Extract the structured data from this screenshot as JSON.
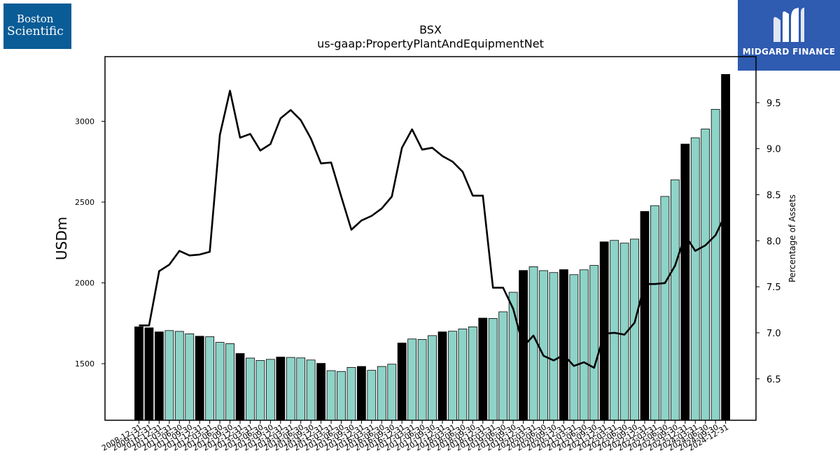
{
  "logos": {
    "company": {
      "line1": "Boston",
      "line2": "Scientific",
      "bg": "#0a5c96"
    },
    "publisher": {
      "name": "MIDGARD FINANCE",
      "bg": "#2f5bb0",
      "icon": "midgard-m-icon"
    }
  },
  "chart_data": {
    "type": "bar",
    "title": "BSX",
    "subtitle": "us-gaap:PropertyPlantAndEquipmentNet",
    "ylabel": "USDm",
    "y2label": "Percentage of Assets",
    "ylim": [
      1150,
      3400
    ],
    "y2lim": [
      6.05,
      10.0
    ],
    "yticks": [
      1500,
      2000,
      2500,
      3000
    ],
    "y2ticks": [
      "6.5",
      "7.0",
      "7.5",
      "8.0",
      "8.5",
      "9.0",
      "9.5"
    ],
    "colors": {
      "annual": "#000000",
      "quarterly": "#8ed3c7",
      "line": "#000000"
    },
    "categories": [
      "2008-12-31",
      "2009-12-31",
      "2010-12-31",
      "2011-03-31",
      "2011-06-30",
      "2011-09-30",
      "2011-12-31",
      "2012-03-31",
      "2012-06-30",
      "2012-09-30",
      "2012-12-31",
      "2013-03-31",
      "2013-06-30",
      "2013-09-30",
      "2013-12-31",
      "2014-03-31",
      "2014-06-30",
      "2014-09-30",
      "2014-12-31",
      "2015-03-31",
      "2015-06-30",
      "2015-09-30",
      "2015-12-31",
      "2016-03-31",
      "2016-06-30",
      "2016-09-30",
      "2016-12-31",
      "2017-03-31",
      "2017-06-30",
      "2017-09-30",
      "2017-12-31",
      "2018-03-31",
      "2018-06-30",
      "2018-09-30",
      "2018-12-31",
      "2019-03-31",
      "2019-06-30",
      "2019-09-30",
      "2019-12-31",
      "2020-03-31",
      "2020-06-30",
      "2020-09-30",
      "2020-12-31",
      "2021-03-31",
      "2021-06-30",
      "2021-09-30",
      "2021-12-31",
      "2022-03-31",
      "2022-06-30",
      "2022-09-30",
      "2022-12-31",
      "2023-03-31",
      "2023-06-30",
      "2023-09-30",
      "2023-12-31",
      "2024-03-31",
      "2024-06-30",
      "2024-09-30",
      "2024-12-31"
    ],
    "period": [
      "annual",
      "annual",
      "annual",
      "quarterly",
      "quarterly",
      "quarterly",
      "annual",
      "quarterly",
      "quarterly",
      "quarterly",
      "annual",
      "quarterly",
      "quarterly",
      "quarterly",
      "annual",
      "quarterly",
      "quarterly",
      "quarterly",
      "annual",
      "quarterly",
      "quarterly",
      "quarterly",
      "annual",
      "quarterly",
      "quarterly",
      "quarterly",
      "annual",
      "quarterly",
      "quarterly",
      "quarterly",
      "annual",
      "quarterly",
      "quarterly",
      "quarterly",
      "annual",
      "quarterly",
      "quarterly",
      "quarterly",
      "annual",
      "quarterly",
      "quarterly",
      "quarterly",
      "annual",
      "quarterly",
      "quarterly",
      "quarterly",
      "annual",
      "quarterly",
      "quarterly",
      "quarterly",
      "annual",
      "quarterly",
      "quarterly",
      "quarterly",
      "annual",
      "quarterly",
      "quarterly",
      "quarterly",
      "annual"
    ],
    "series": [
      {
        "axis": "left",
        "type": "bar",
        "values": [
          1728,
          1722,
          1697,
          1705,
          1700,
          1685,
          1670,
          1667,
          1632,
          1624,
          1563,
          1535,
          1520,
          1527,
          1541,
          1539,
          1536,
          1523,
          1502,
          1457,
          1452,
          1477,
          1483,
          1459,
          1483,
          1497,
          1628,
          1653,
          1650,
          1674,
          1697,
          1701,
          1715,
          1728,
          1782,
          1780,
          1821,
          1942,
          2077,
          2100,
          2076,
          2064,
          2082,
          2051,
          2081,
          2108,
          2254,
          2263,
          2246,
          2271,
          2442,
          2478,
          2535,
          2638,
          2859,
          2898,
          2952,
          3074,
          3290
        ]
      },
      {
        "axis": "right",
        "type": "line",
        "values": [
          7.08,
          7.08,
          7.67,
          7.74,
          7.89,
          7.84,
          7.85,
          7.88,
          9.15,
          9.63,
          9.12,
          9.16,
          8.98,
          9.05,
          9.33,
          9.42,
          9.31,
          9.11,
          8.84,
          8.85,
          8.48,
          8.12,
          8.22,
          8.27,
          8.35,
          8.48,
          9.01,
          9.21,
          8.99,
          9.01,
          8.92,
          8.86,
          8.75,
          8.49,
          8.49,
          7.49,
          7.49,
          7.26,
          6.85,
          6.97,
          6.75,
          6.7,
          6.76,
          6.64,
          6.68,
          6.62,
          6.99,
          7.0,
          6.98,
          7.11,
          7.53,
          7.53,
          7.54,
          7.73,
          8.06,
          7.89,
          7.95,
          8.06,
          8.29
        ]
      }
    ],
    "grid": false
  }
}
